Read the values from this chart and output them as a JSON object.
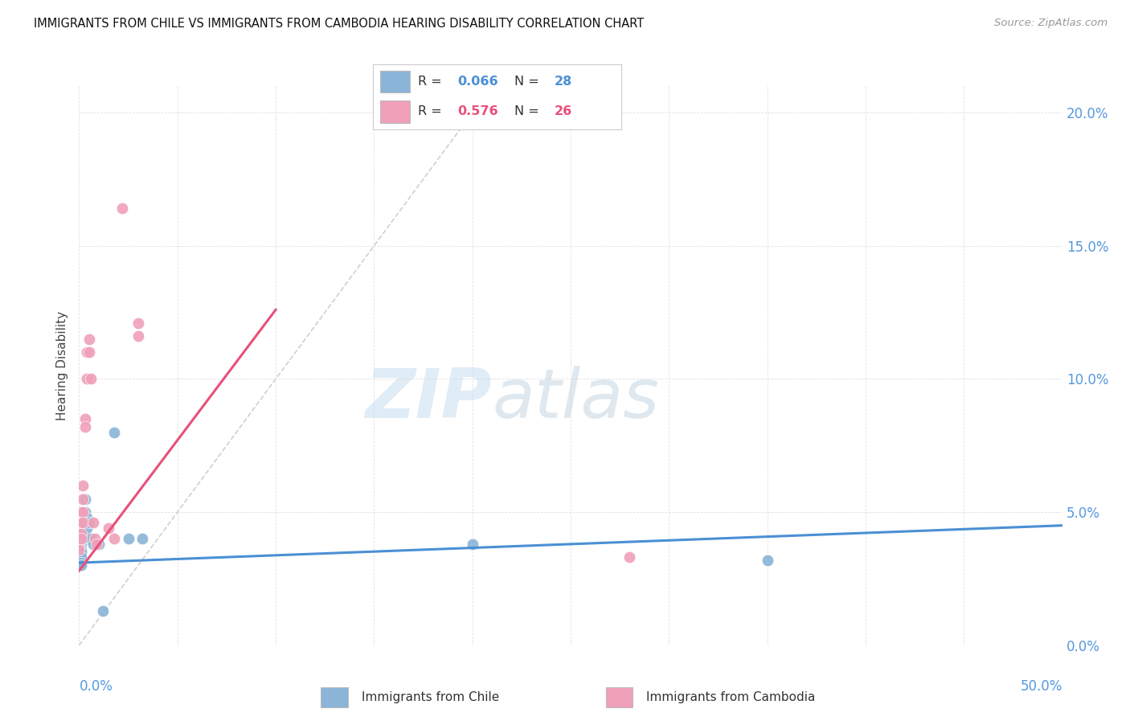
{
  "title": "IMMIGRANTS FROM CHILE VS IMMIGRANTS FROM CAMBODIA HEARING DISABILITY CORRELATION CHART",
  "source": "Source: ZipAtlas.com",
  "ylabel": "Hearing Disability",
  "watermark_zip": "ZIP",
  "watermark_atlas": "atlas",
  "chile_color": "#8ab4d8",
  "cambodia_color": "#f0a0b8",
  "chile_trendline_color": "#4a90d4",
  "cambodia_trendline_color": "#e8507a",
  "diagonal_color": "#d0d0d0",
  "xlim": [
    0.0,
    0.5
  ],
  "ylim": [
    0.0,
    0.21
  ],
  "xticks": [
    0.0,
    0.05,
    0.1,
    0.15,
    0.2,
    0.25,
    0.3,
    0.35,
    0.4,
    0.45,
    0.5
  ],
  "yticks": [
    0.0,
    0.05,
    0.1,
    0.15,
    0.2
  ],
  "ytick_labels_right": [
    "0.0%",
    "5.0%",
    "10.0%",
    "15.0%",
    "20.0%"
  ],
  "right_tick_color": "#5599dd",
  "chile_points": [
    [
      0.0,
      0.037
    ],
    [
      0.0,
      0.036
    ],
    [
      0.001,
      0.038
    ],
    [
      0.001,
      0.036
    ],
    [
      0.001,
      0.035
    ],
    [
      0.001,
      0.033
    ],
    [
      0.001,
      0.031
    ],
    [
      0.001,
      0.03
    ],
    [
      0.002,
      0.05
    ],
    [
      0.002,
      0.046
    ],
    [
      0.002,
      0.044
    ],
    [
      0.002,
      0.042
    ],
    [
      0.002,
      0.04
    ],
    [
      0.003,
      0.055
    ],
    [
      0.003,
      0.05
    ],
    [
      0.003,
      0.046
    ],
    [
      0.004,
      0.048
    ],
    [
      0.004,
      0.044
    ],
    [
      0.005,
      0.046
    ],
    [
      0.006,
      0.04
    ],
    [
      0.007,
      0.038
    ],
    [
      0.01,
      0.038
    ],
    [
      0.012,
      0.013
    ],
    [
      0.018,
      0.08
    ],
    [
      0.025,
      0.04
    ],
    [
      0.032,
      0.04
    ],
    [
      0.2,
      0.038
    ],
    [
      0.35,
      0.032
    ]
  ],
  "cambodia_points": [
    [
      0.0,
      0.037
    ],
    [
      0.0,
      0.036
    ],
    [
      0.001,
      0.05
    ],
    [
      0.001,
      0.046
    ],
    [
      0.001,
      0.042
    ],
    [
      0.001,
      0.04
    ],
    [
      0.002,
      0.06
    ],
    [
      0.002,
      0.055
    ],
    [
      0.002,
      0.05
    ],
    [
      0.002,
      0.046
    ],
    [
      0.003,
      0.085
    ],
    [
      0.003,
      0.082
    ],
    [
      0.004,
      0.11
    ],
    [
      0.004,
      0.1
    ],
    [
      0.005,
      0.115
    ],
    [
      0.005,
      0.11
    ],
    [
      0.006,
      0.1
    ],
    [
      0.007,
      0.046
    ],
    [
      0.008,
      0.04
    ],
    [
      0.009,
      0.038
    ],
    [
      0.015,
      0.044
    ],
    [
      0.018,
      0.04
    ],
    [
      0.022,
      0.164
    ],
    [
      0.03,
      0.121
    ],
    [
      0.03,
      0.116
    ],
    [
      0.28,
      0.033
    ]
  ],
  "legend_chile_r": "0.066",
  "legend_chile_n": "28",
  "legend_camb_r": "0.576",
  "legend_camb_n": "26",
  "chile_trend_x": [
    0.0,
    0.5
  ],
  "chile_trend_y": [
    0.031,
    0.045
  ],
  "cambodia_trend_x": [
    0.0,
    0.1
  ],
  "cambodia_trend_y": [
    0.028,
    0.126
  ]
}
